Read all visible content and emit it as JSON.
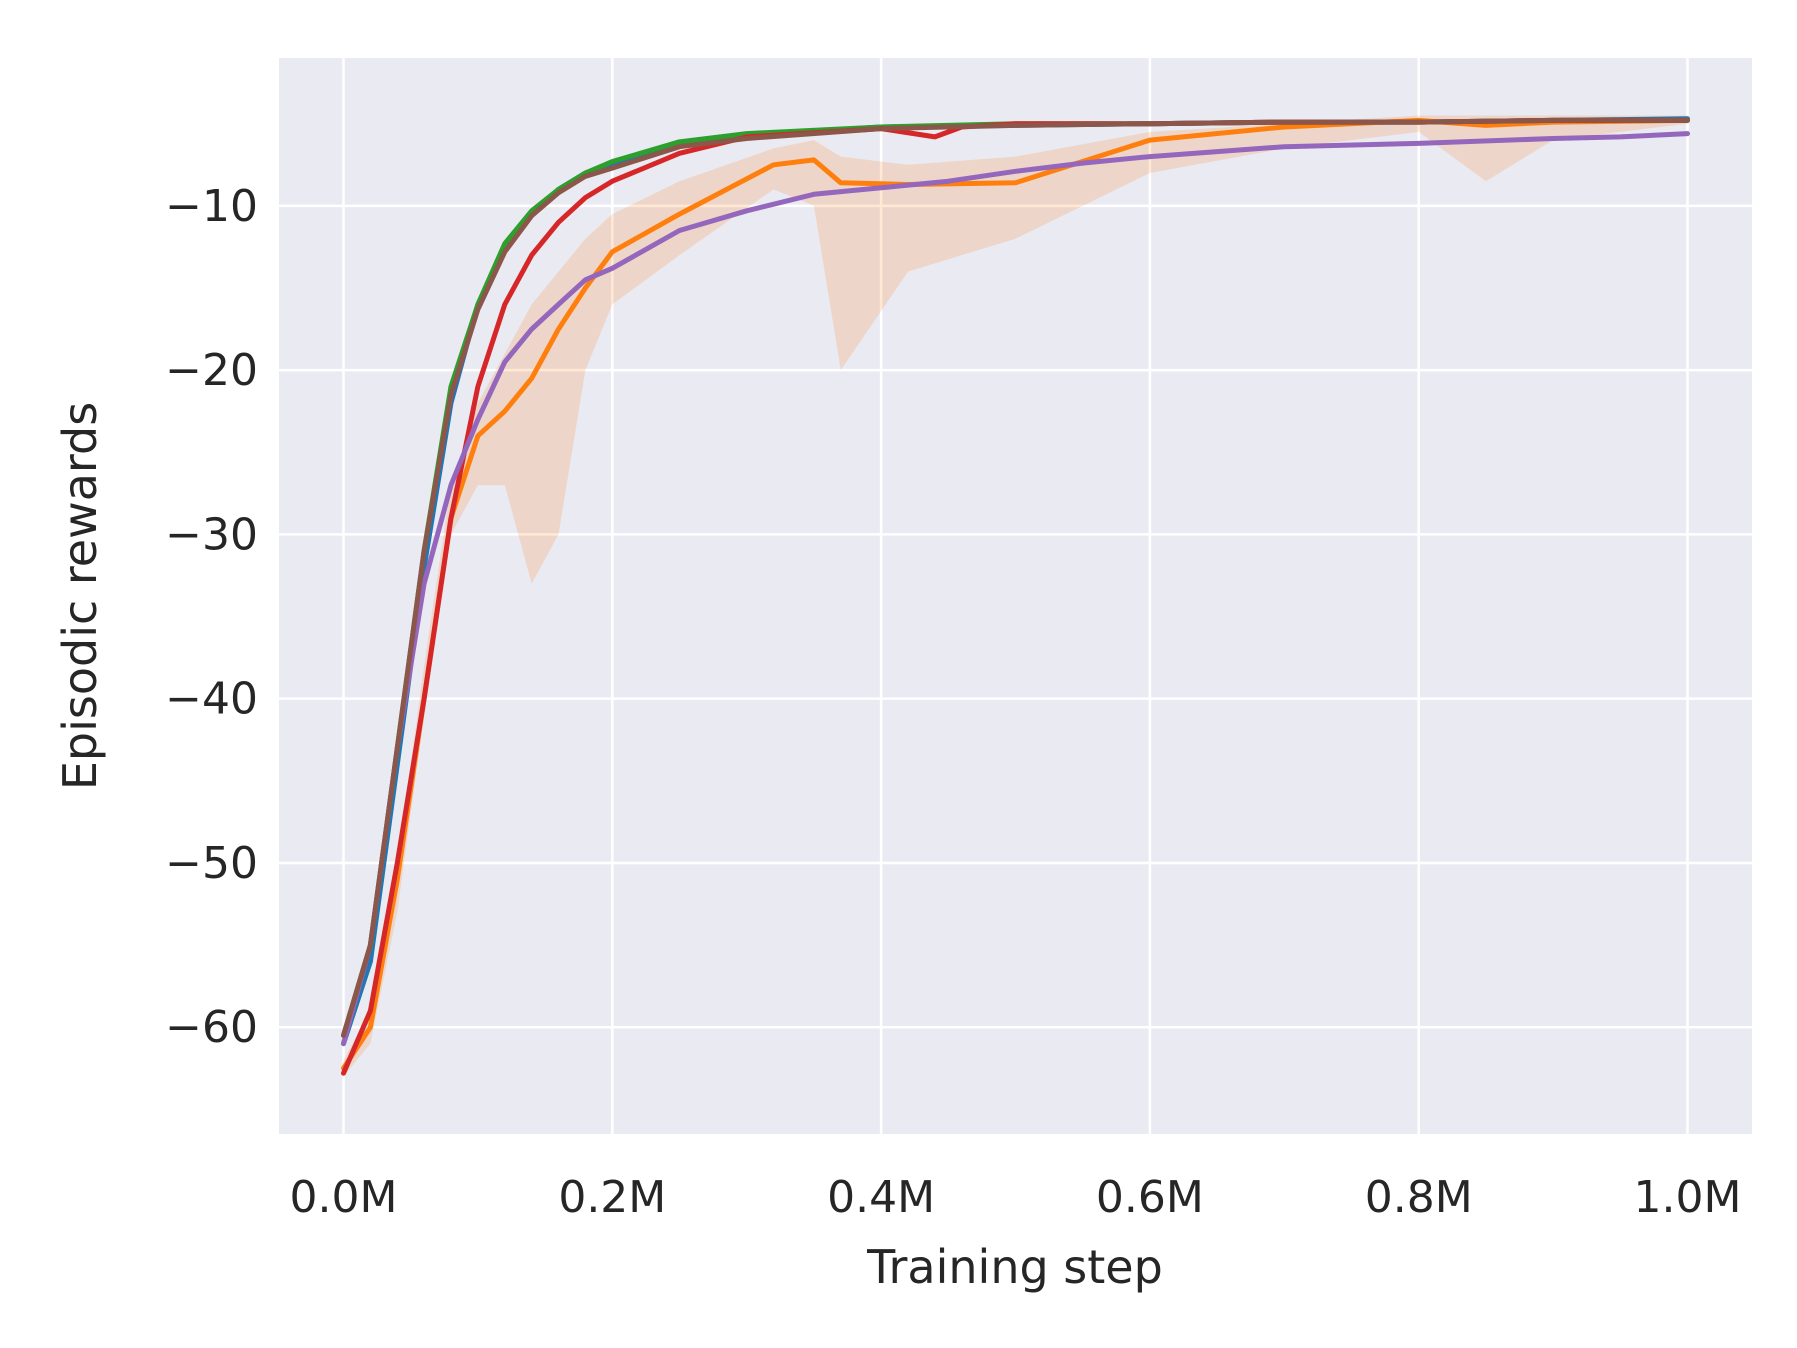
{
  "chart_data": {
    "type": "line",
    "title": "",
    "xlabel": "Training step",
    "ylabel": "Episodic rewards",
    "xlim": [
      -0.048,
      1.048
    ],
    "ylim": [
      -66.5,
      -1
    ],
    "xticks": [
      {
        "value": 0.0,
        "label": "0.0M"
      },
      {
        "value": 0.2,
        "label": "0.2M"
      },
      {
        "value": 0.4,
        "label": "0.4M"
      },
      {
        "value": 0.6,
        "label": "0.6M"
      },
      {
        "value": 0.8,
        "label": "0.8M"
      },
      {
        "value": 1.0,
        "label": "1.0M"
      }
    ],
    "yticks": [
      {
        "value": -10,
        "label": "−10"
      },
      {
        "value": -20,
        "label": "−20"
      },
      {
        "value": -30,
        "label": "−30"
      },
      {
        "value": -40,
        "label": "−40"
      },
      {
        "value": -50,
        "label": "−50"
      },
      {
        "value": -60,
        "label": "−60"
      }
    ],
    "grid": true,
    "background": "#eaeaf2",
    "series": [
      {
        "name": "blue",
        "color": "#1f77b4",
        "x": [
          0,
          0.02,
          0.04,
          0.06,
          0.08,
          0.1,
          0.12,
          0.14,
          0.16,
          0.18,
          0.2,
          0.25,
          0.3,
          0.4,
          0.5,
          0.6,
          0.7,
          0.8,
          0.9,
          1.0
        ],
        "y": [
          -61,
          -56,
          -44,
          -32,
          -22,
          -16,
          -12.5,
          -10.5,
          -9,
          -8,
          -7.4,
          -6.3,
          -5.7,
          -5.2,
          -5.1,
          -5.0,
          -4.9,
          -4.9,
          -4.8,
          -4.7
        ]
      },
      {
        "name": "orange",
        "color": "#ff7f0e",
        "band_lower": [
          -63,
          -61,
          -53,
          -41,
          -30,
          -27,
          -27,
          -33,
          -30,
          -20,
          -16,
          -13,
          -9,
          -10,
          -20,
          -14,
          -12,
          -8,
          -6.5,
          -5.5,
          -8.5,
          -6,
          -5
        ],
        "band_upper": [
          -62,
          -59,
          -50,
          -38,
          -27,
          -22,
          -19,
          -16,
          -14,
          -12,
          -10.5,
          -8.5,
          -6.5,
          -6,
          -7,
          -7.5,
          -7,
          -5.5,
          -5,
          -4.5,
          -4.5,
          -4.5,
          -4.5
        ],
        "x": [
          0,
          0.02,
          0.04,
          0.06,
          0.08,
          0.1,
          0.12,
          0.14,
          0.16,
          0.18,
          0.2,
          0.25,
          0.32,
          0.35,
          0.37,
          0.42,
          0.5,
          0.6,
          0.7,
          0.8,
          0.85,
          0.9,
          1.0
        ],
        "y": [
          -62.5,
          -60,
          -51,
          -40,
          -29,
          -24,
          -22.5,
          -20.5,
          -17.5,
          -15,
          -12.8,
          -10.5,
          -7.5,
          -7.2,
          -8.6,
          -8.7,
          -8.6,
          -6.0,
          -5.2,
          -4.8,
          -5.1,
          -4.9,
          -4.8
        ]
      },
      {
        "name": "green",
        "color": "#2ca02c",
        "x": [
          0,
          0.02,
          0.04,
          0.06,
          0.08,
          0.1,
          0.12,
          0.14,
          0.16,
          0.18,
          0.2,
          0.25,
          0.3,
          0.4,
          0.5,
          0.6,
          0.7,
          0.8,
          0.9,
          1.0
        ],
        "y": [
          -60.5,
          -55,
          -43,
          -31,
          -21,
          -16,
          -12.3,
          -10.3,
          -9,
          -8,
          -7.3,
          -6.1,
          -5.6,
          -5.2,
          -5.0,
          -5.0,
          -4.9,
          -4.9,
          -4.8,
          -4.8
        ]
      },
      {
        "name": "red",
        "color": "#d62728",
        "x": [
          0,
          0.02,
          0.04,
          0.06,
          0.08,
          0.1,
          0.12,
          0.14,
          0.16,
          0.18,
          0.2,
          0.25,
          0.3,
          0.4,
          0.44,
          0.46,
          0.5,
          0.6,
          0.7,
          0.8,
          0.9,
          1.0
        ],
        "y": [
          -62.8,
          -59,
          -50,
          -40,
          -29,
          -21,
          -16,
          -13,
          -11,
          -9.5,
          -8.5,
          -6.8,
          -5.8,
          -5.3,
          -5.8,
          -5.2,
          -5.0,
          -5.0,
          -4.9,
          -4.9,
          -4.8,
          -4.8
        ]
      },
      {
        "name": "purple",
        "color": "#9467bd",
        "x": [
          0,
          0.02,
          0.04,
          0.06,
          0.08,
          0.1,
          0.12,
          0.14,
          0.16,
          0.18,
          0.2,
          0.25,
          0.3,
          0.35,
          0.4,
          0.45,
          0.5,
          0.55,
          0.6,
          0.65,
          0.7,
          0.8,
          0.9,
          0.95,
          1.0
        ],
        "y": [
          -61,
          -55,
          -43,
          -33,
          -27,
          -23,
          -19.5,
          -17.5,
          -16,
          -14.5,
          -13.8,
          -11.5,
          -10.3,
          -9.3,
          -8.9,
          -8.5,
          -7.9,
          -7.4,
          -7.0,
          -6.7,
          -6.4,
          -6.2,
          -5.9,
          -5.8,
          -5.6
        ]
      },
      {
        "name": "brown",
        "color": "#8c564b",
        "x": [
          0,
          0.02,
          0.04,
          0.06,
          0.08,
          0.1,
          0.12,
          0.14,
          0.16,
          0.18,
          0.2,
          0.25,
          0.3,
          0.4,
          0.5,
          0.6,
          0.7,
          0.8,
          0.9,
          1.0
        ],
        "y": [
          -60.5,
          -55,
          -43,
          -31,
          -21.5,
          -16.3,
          -12.8,
          -10.6,
          -9.2,
          -8.2,
          -7.7,
          -6.4,
          -5.9,
          -5.3,
          -5.1,
          -5.0,
          -4.9,
          -4.9,
          -4.8,
          -4.8
        ]
      }
    ]
  }
}
